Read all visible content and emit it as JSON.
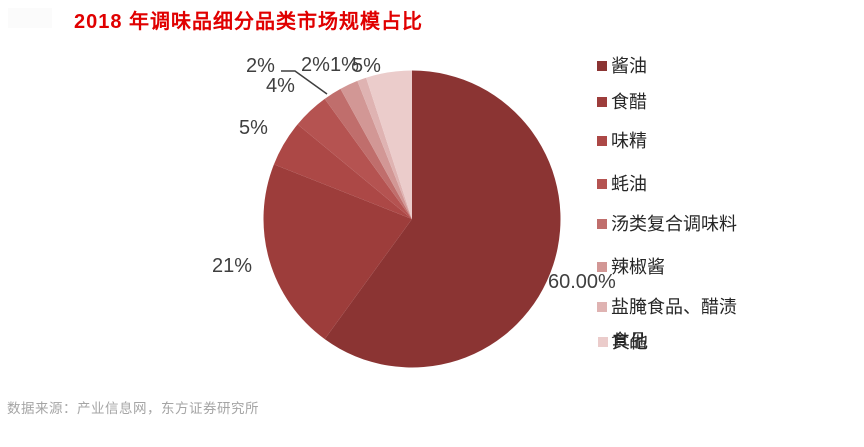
{
  "title": "2018 年调味品细分品类市场规模占比",
  "title_color": "#E00000",
  "footer": "数据来源：产业信息网，东方证券研究所",
  "chart_data": {
    "type": "pie",
    "title": "2018 年调味品细分品类市场规模占比",
    "categories": [
      "酱油",
      "食醋",
      "味精",
      "蚝油",
      "汤类复合调味料",
      "辣椒酱",
      "盐腌食品、醋渍食品",
      "其他"
    ],
    "values": [
      60,
      21,
      5,
      4,
      2,
      2,
      1,
      5
    ],
    "display_labels": [
      "60.00%",
      "21%",
      "5%",
      "4%",
      "2%",
      "2%",
      "1%",
      "5%"
    ],
    "colors": [
      "#8B3433",
      "#9D3D3B",
      "#AC4846",
      "#B55351",
      "#C06E6C",
      "#D29795",
      "#DFB3B2",
      "#EBCCCB"
    ],
    "start_angle_deg": 0,
    "direction": "clockwise",
    "legend_position": "right",
    "label_color": "#3F3F3F",
    "source_note": "数据来源：产业信息网，东方证券研究所"
  },
  "legend": {
    "items": [
      {
        "label": "酱油",
        "color": "#8B3433"
      },
      {
        "label": "食醋",
        "color": "#9D3D3B"
      },
      {
        "label": "味精",
        "color": "#AC4846"
      },
      {
        "label": "蚝油",
        "color": "#B55351"
      },
      {
        "label": "汤类复合调味料",
        "color": "#C06E6C"
      },
      {
        "label": "辣椒酱",
        "color": "#D29795"
      },
      {
        "label": "盐腌食品、醋渍食品",
        "color": "#DFB3B2",
        "lines": [
          "盐腌食品、醋渍",
          "食品"
        ]
      },
      {
        "label": "其他",
        "color": "#EBCCCB"
      }
    ]
  }
}
